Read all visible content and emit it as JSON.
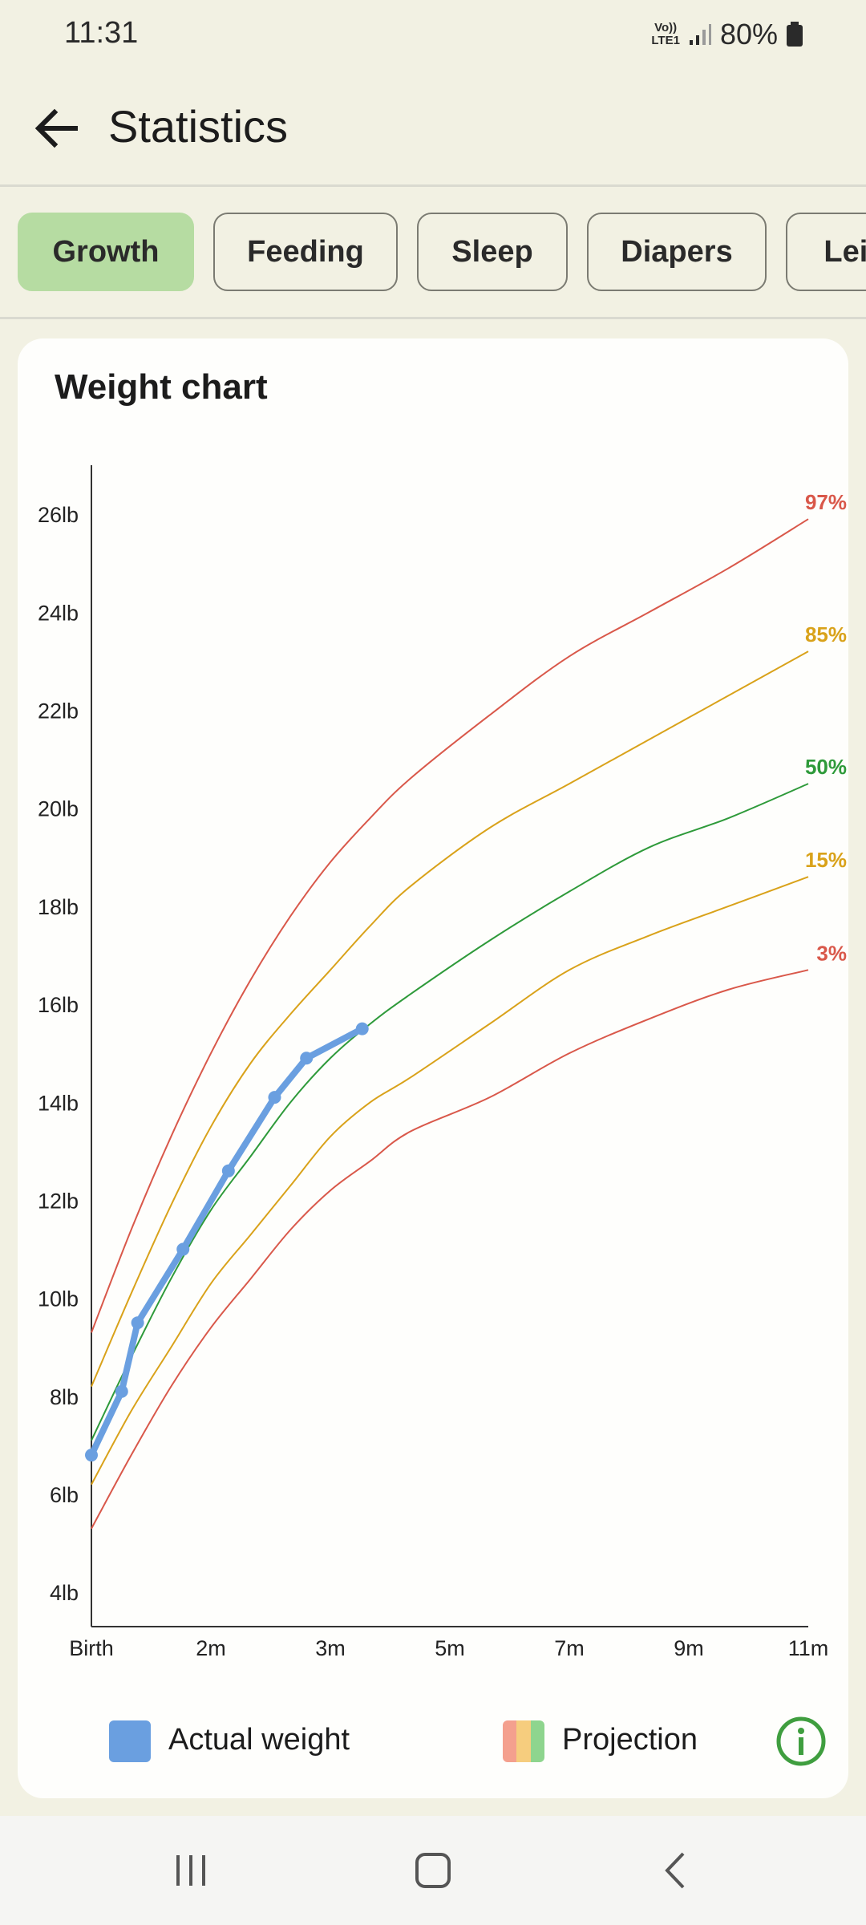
{
  "status_bar": {
    "time": "11:31",
    "network_top": "Vo))",
    "network_bottom": "LTE1",
    "battery": "80%"
  },
  "header": {
    "title": "Statistics",
    "back_icon": "arrow-left-icon"
  },
  "tabs": [
    {
      "label": "Growth",
      "active": true
    },
    {
      "label": "Feeding",
      "active": false
    },
    {
      "label": "Sleep",
      "active": false
    },
    {
      "label": "Diapers",
      "active": false
    },
    {
      "label": "Leisure",
      "active": false
    }
  ],
  "chart_card": {
    "title": "Weight chart"
  },
  "colors": {
    "actual": "#6A9FE0",
    "p97": "#D9584A",
    "p85": "#D9A21A",
    "p50": "#2E9A3A",
    "p15": "#D9A21A",
    "p3": "#D9584A",
    "projection_swatch": [
      "#F4A08E",
      "#F6CD7E",
      "#8ED58E"
    ],
    "info": "#3F9E3F"
  },
  "chart_data": {
    "type": "line",
    "title": "Weight chart",
    "x_tick_labels": [
      "Birth",
      "2m",
      "3m",
      "5m",
      "7m",
      "9m",
      "11m"
    ],
    "x_tick_values": [
      0,
      1.5,
      3,
      4.5,
      6,
      7.5,
      9
    ],
    "y_tick_labels": [
      "4lb",
      "6lb",
      "8lb",
      "10lb",
      "12lb",
      "14lb",
      "16lb",
      "18lb",
      "20lb",
      "22lb",
      "24lb",
      "26lb"
    ],
    "y_tick_values": [
      4,
      6,
      8,
      10,
      12,
      14,
      16,
      18,
      20,
      22,
      24,
      26
    ],
    "xlim": [
      0,
      9
    ],
    "ylim": [
      3.3,
      27
    ],
    "grid": false,
    "legend_position": "bottom",
    "legend": [
      {
        "label": "Actual weight",
        "key": "actual"
      },
      {
        "label": "Projection",
        "key": "projection"
      }
    ],
    "series": [
      {
        "name": "97%",
        "color_key": "p97",
        "x": [
          0,
          0.5,
          1,
          1.5,
          2,
          2.5,
          3,
          3.5,
          4,
          5,
          6,
          7,
          8,
          9
        ],
        "y": [
          9.3,
          11.4,
          13.3,
          15.0,
          16.5,
          17.8,
          18.9,
          19.8,
          20.6,
          21.9,
          23.1,
          24.0,
          24.9,
          25.9
        ]
      },
      {
        "name": "85%",
        "color_key": "p85",
        "x": [
          0,
          0.5,
          1,
          1.5,
          2,
          2.5,
          3,
          3.5,
          4,
          5,
          6,
          7,
          8,
          9
        ],
        "y": [
          8.2,
          10.1,
          11.9,
          13.5,
          14.8,
          15.8,
          16.7,
          17.6,
          18.4,
          19.6,
          20.5,
          21.4,
          22.3,
          23.2
        ]
      },
      {
        "name": "50%",
        "color_key": "p50",
        "x": [
          0,
          0.5,
          1,
          1.5,
          2,
          2.5,
          3,
          3.5,
          4,
          5,
          6,
          7,
          8,
          9
        ],
        "y": [
          7.1,
          8.8,
          10.4,
          11.8,
          12.9,
          14.0,
          14.9,
          15.6,
          16.2,
          17.3,
          18.3,
          19.2,
          19.8,
          20.5
        ]
      },
      {
        "name": "15%",
        "color_key": "p15",
        "x": [
          0,
          0.5,
          1,
          1.5,
          2,
          2.5,
          3,
          3.5,
          4,
          5,
          6,
          7,
          8,
          9
        ],
        "y": [
          6.2,
          7.7,
          9.0,
          10.3,
          11.3,
          12.3,
          13.3,
          14.0,
          14.5,
          15.6,
          16.7,
          17.4,
          18.0,
          18.6
        ]
      },
      {
        "name": "3%",
        "color_key": "p3",
        "x": [
          0,
          0.5,
          1,
          1.5,
          2,
          2.5,
          3,
          3.5,
          4,
          5,
          6,
          7,
          8,
          9
        ],
        "y": [
          5.3,
          6.8,
          8.2,
          9.4,
          10.4,
          11.4,
          12.2,
          12.8,
          13.4,
          14.1,
          15.0,
          15.7,
          16.3,
          16.7
        ]
      },
      {
        "name": "Actual weight",
        "color_key": "actual",
        "markers": true,
        "x": [
          0,
          0.38,
          0.58,
          1.15,
          1.72,
          2.3,
          2.7,
          3.4
        ],
        "y": [
          6.8,
          8.1,
          9.5,
          11.0,
          12.6,
          14.1,
          14.9,
          15.5
        ]
      }
    ]
  },
  "nav_bar": {
    "recents_icon": "recents-icon",
    "home_icon": "home-icon",
    "back_icon": "chevron-left-icon"
  }
}
